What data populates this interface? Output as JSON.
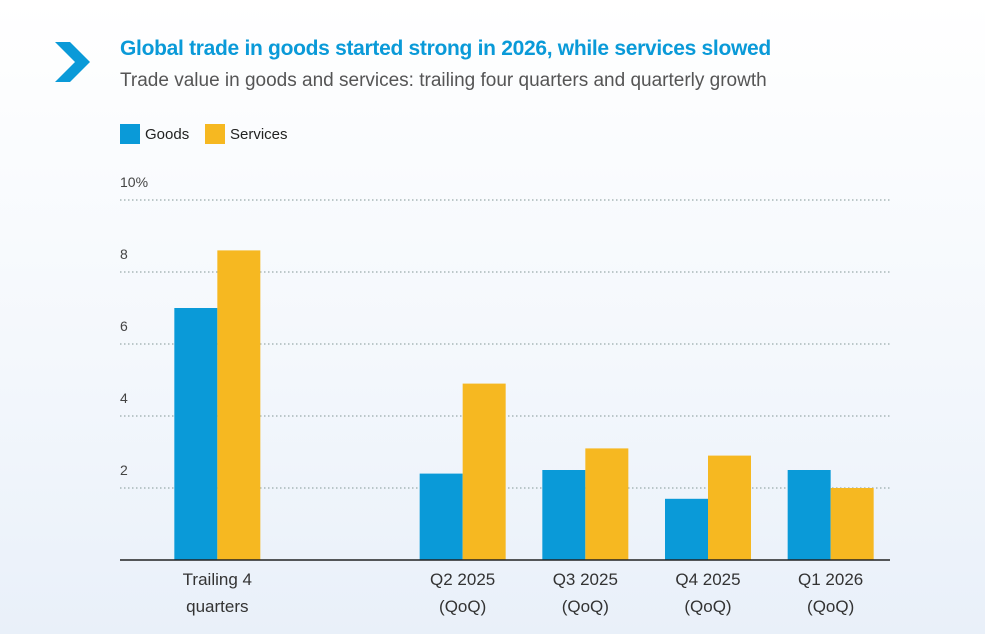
{
  "chart_data": {
    "type": "bar",
    "title": "Global trade in goods started strong in 2026, while services slowed",
    "subtitle": "Trade value in goods and services: trailing four quarters and quarterly growth",
    "categories": [
      "Trailing 4\nquarters",
      null,
      "Q2 2025\n(QoQ)",
      "Q3 2025\n(QoQ)",
      "Q4 2025\n(QoQ)",
      "Q1 2026\n(QoQ)"
    ],
    "series": [
      {
        "name": "Goods",
        "color": "#0a9ad8",
        "values": [
          7.0,
          null,
          2.4,
          2.5,
          1.7,
          2.5
        ]
      },
      {
        "name": "Services",
        "color": "#f6b821",
        "values": [
          8.6,
          null,
          4.9,
          3.1,
          2.9,
          2.0
        ]
      }
    ],
    "ylim": [
      0,
      10
    ],
    "yticks": [
      2,
      4,
      6,
      8,
      {
        "value": 10,
        "label": "10%"
      }
    ],
    "grid": true
  }
}
